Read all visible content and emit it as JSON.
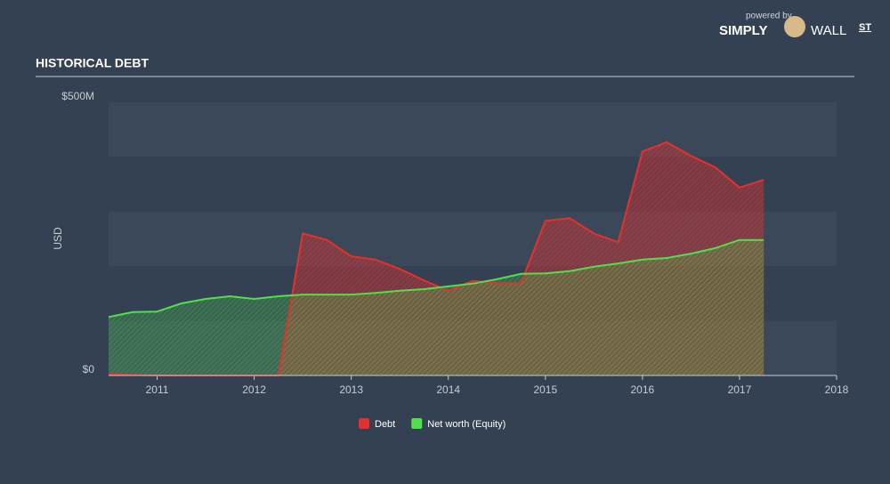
{
  "brand": {
    "powered_by": "powered by",
    "name_left": "SIMPLY",
    "name_right": "WALL",
    "name_suffix": "ST"
  },
  "chart_data": {
    "type": "area",
    "title": "HISTORICAL DEBT",
    "y_label": "USD",
    "x": [
      2010.5,
      2010.75,
      2011,
      2011.25,
      2011.5,
      2011.75,
      2012,
      2012.25,
      2012.5,
      2012.75,
      2013,
      2013.25,
      2013.5,
      2013.75,
      2014,
      2014.25,
      2014.5,
      2014.75,
      2015,
      2015.25,
      2015.5,
      2015.75,
      2016,
      2016.25,
      2016.5,
      2016.75,
      2017,
      2017.25
    ],
    "series": [
      {
        "name": "Debt",
        "color": "#e5312d",
        "values": [
          3,
          1,
          0,
          0,
          0,
          0,
          0,
          0,
          260,
          248,
          218,
          212,
          195,
          174,
          155,
          173,
          169,
          169,
          283,
          288,
          260,
          244,
          410,
          427,
          402,
          381,
          344,
          358
        ]
      },
      {
        "name": "Net worth (Equity)",
        "color": "#4fe04b",
        "values": [
          107,
          116,
          117,
          132,
          140,
          145,
          140,
          145,
          148,
          148,
          148,
          151,
          155,
          158,
          163,
          168,
          176,
          186,
          187,
          191,
          199,
          205,
          212,
          215,
          223,
          233,
          248,
          248
        ]
      }
    ],
    "xlim": [
      2010.5,
      2018
    ],
    "xticks": [
      2011,
      2012,
      2013,
      2014,
      2015,
      2016,
      2017,
      2018
    ],
    "ylim": [
      0,
      500
    ],
    "yticks": [
      {
        "value": 0,
        "label": "$0"
      },
      {
        "value": 500,
        "label": "$500M"
      }
    ]
  }
}
